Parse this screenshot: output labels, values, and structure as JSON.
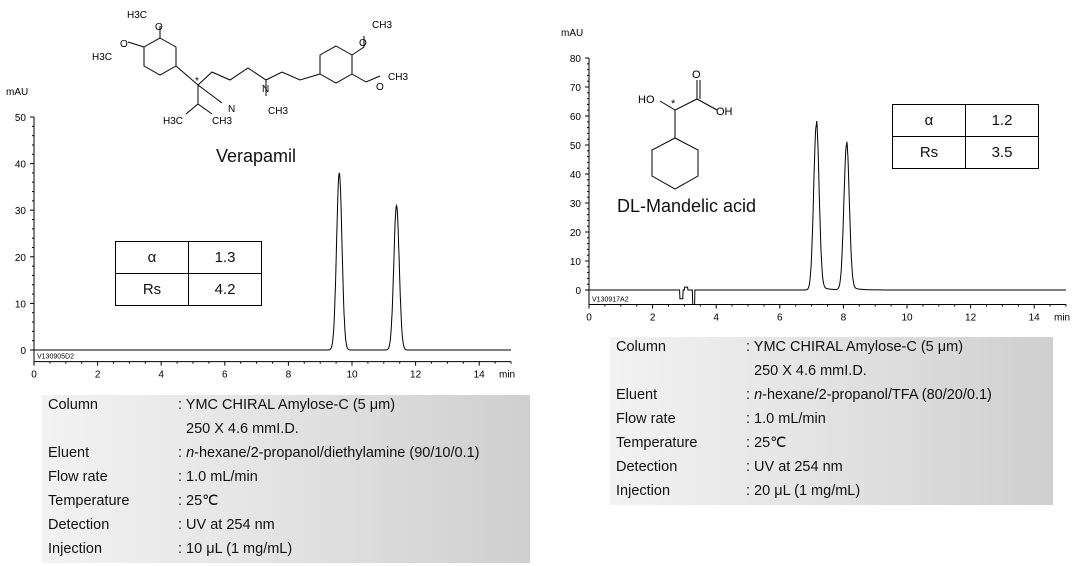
{
  "chart_data": [
    {
      "type": "line",
      "title": "Verapamil",
      "ylabel": "mAU",
      "xlabel": "min",
      "xlim": [
        0,
        15
      ],
      "ylim": [
        -2.5,
        50
      ],
      "xticks": [
        "0",
        "2",
        "4",
        "6",
        "8",
        "10",
        "12",
        "14"
      ],
      "yticks": [
        "0",
        "10",
        "20",
        "30",
        "40",
        "50"
      ],
      "peaks": [
        {
          "rt": 9.6,
          "height": 38
        },
        {
          "rt": 11.4,
          "height": 31
        }
      ],
      "run_id": "V130905D2",
      "selectivity": {
        "alpha_label": "α",
        "alpha": "1.3",
        "rs_label": "Rs",
        "rs": "4.2"
      },
      "structure_labels": [
        "H3C",
        "O",
        "H3C",
        "O",
        "N",
        "N",
        "CH3",
        "H3C",
        "CH3",
        "CH3",
        "O",
        "O",
        "CH3",
        "*"
      ]
    },
    {
      "type": "line",
      "title": "DL-Mandelic acid",
      "ylabel": "mAU",
      "xlabel": "min",
      "xlim": [
        0,
        15
      ],
      "ylim": [
        -5,
        80
      ],
      "xticks": [
        "0",
        "2",
        "4",
        "6",
        "8",
        "10",
        "12",
        "14"
      ],
      "yticks": [
        "0",
        "10",
        "20",
        "30",
        "40",
        "50",
        "60",
        "70",
        "80"
      ],
      "peaks": [
        {
          "rt": 7.15,
          "height": 57
        },
        {
          "rt": 8.1,
          "height": 50
        }
      ],
      "run_id": "V130917A2",
      "selectivity": {
        "alpha_label": "α",
        "alpha": "1.2",
        "rs_label": "Rs",
        "rs": "3.5"
      },
      "structure_labels": [
        "HO",
        "O",
        "OH",
        "*"
      ]
    }
  ],
  "conditions": [
    {
      "rows": [
        {
          "label": "Column",
          "value": ": YMC CHIRAL Amylose-C (5 μm)"
        },
        {
          "label": "",
          "value": "250 X 4.6 mmI.D."
        },
        {
          "label": "Eluent",
          "value_prefix": ": ",
          "value_italic": "n",
          "value": "-hexane/2-propanol/diethylamine (90/10/0.1)"
        },
        {
          "label": "Flow rate",
          "value": ": 1.0 mL/min"
        },
        {
          "label": "Temperature",
          "value": ": 25℃"
        },
        {
          "label": "Detection",
          "value": ": UV at 254 nm"
        },
        {
          "label": "Injection",
          "value": ": 10 μL (1 mg/mL)"
        }
      ]
    },
    {
      "rows": [
        {
          "label": "Column",
          "value": ": YMC CHIRAL Amylose-C (5 μm)"
        },
        {
          "label": "",
          "value": "250 X 4.6 mmI.D."
        },
        {
          "label": "Eluent",
          "value_prefix": ": ",
          "value_italic": "n",
          "value": "-hexane/2-propanol/TFA (80/20/0.1)"
        },
        {
          "label": "Flow rate",
          "value": ": 1.0 mL/min"
        },
        {
          "label": "Temperature",
          "value": ": 25℃"
        },
        {
          "label": "Detection",
          "value": ": UV at 254 nm"
        },
        {
          "label": "Injection",
          "value": ": 20 μL (1 mg/mL)"
        }
      ]
    }
  ],
  "colors": {
    "trace": "#000000",
    "panel": "#d9d9d9"
  }
}
